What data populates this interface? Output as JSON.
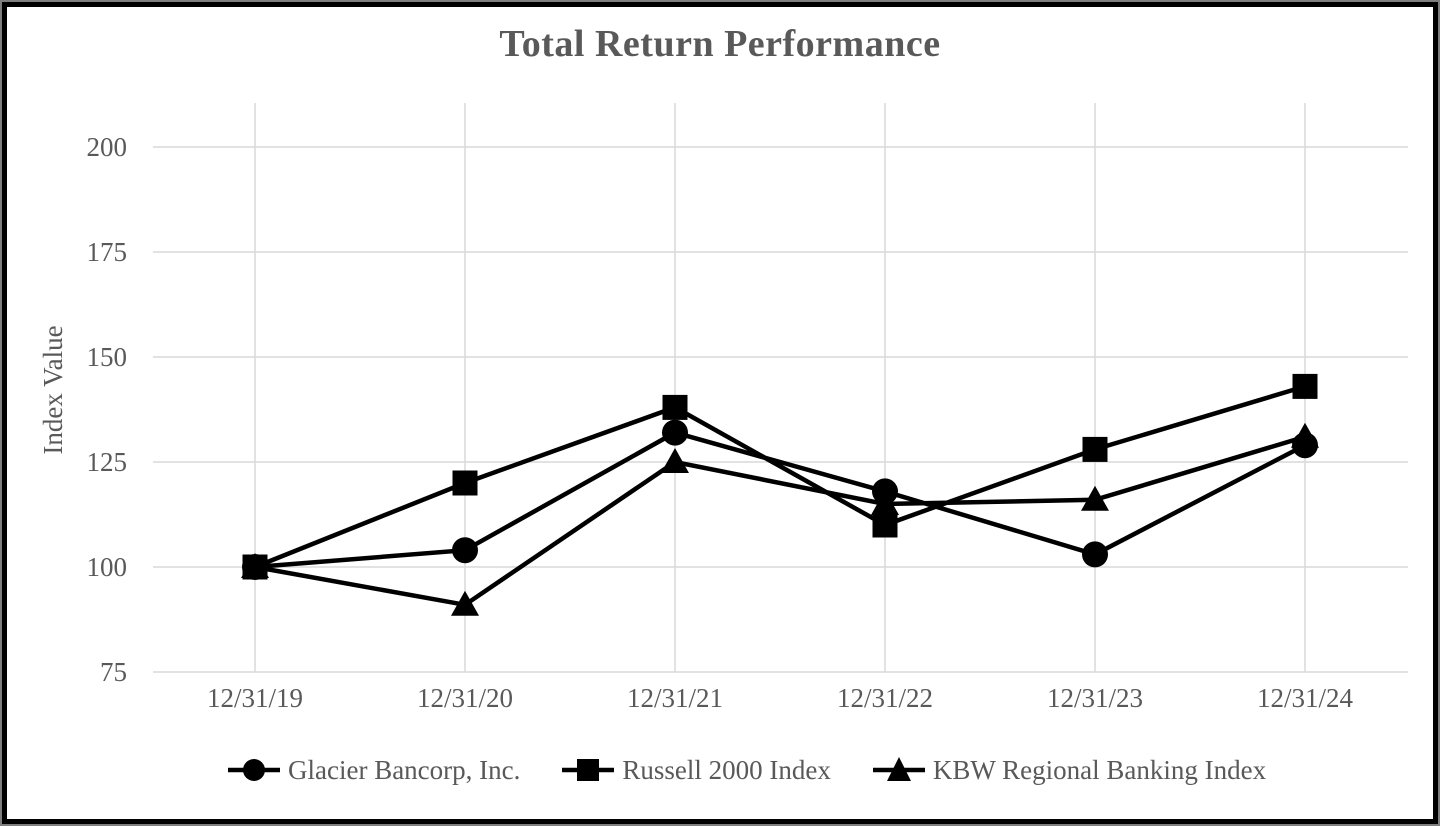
{
  "chart_data": {
    "type": "line",
    "title": "Total Return Performance",
    "ylabel": "Index Value",
    "xlabel": "",
    "categories": [
      "12/31/19",
      "12/31/20",
      "12/31/21",
      "12/31/22",
      "12/31/23",
      "12/31/24"
    ],
    "series": [
      {
        "name": "Glacier Bancorp, Inc.",
        "marker": "circle",
        "values": [
          100,
          104,
          132,
          118,
          103,
          129
        ]
      },
      {
        "name": "Russell 2000 Index",
        "marker": "square",
        "values": [
          100,
          120,
          138,
          110,
          128,
          143
        ]
      },
      {
        "name": "KBW Regional Banking Index",
        "marker": "triangle",
        "values": [
          100,
          91,
          125,
          115,
          116,
          131
        ]
      }
    ],
    "yticks": [
      75,
      100,
      125,
      150,
      175,
      200
    ],
    "ylim": [
      75,
      200
    ],
    "grid": true,
    "legend_position": "bottom",
    "colors": {
      "series": "#000000",
      "grid": "#d9d9d9",
      "text": "#595959"
    }
  }
}
